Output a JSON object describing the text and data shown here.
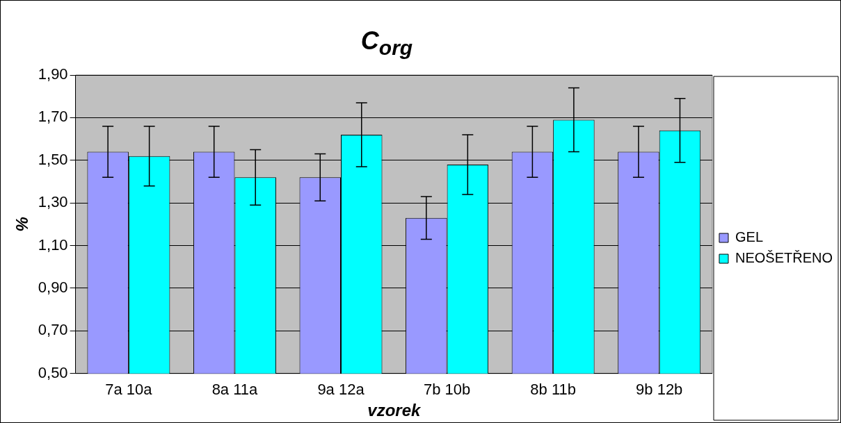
{
  "chart_data": {
    "type": "bar",
    "title": "C$_{org}$",
    "xlabel": "vzorek",
    "ylabel": "%",
    "categories": [
      "7a 10a",
      "8a 11a",
      "9a 12a",
      "7b 10b",
      "8b 11b",
      "9b 12b"
    ],
    "series": [
      {
        "name": "GEL",
        "color": "#9999ff",
        "values": [
          1.54,
          1.54,
          1.42,
          1.23,
          1.54,
          1.54
        ],
        "errors": [
          0.12,
          0.12,
          0.11,
          0.1,
          0.12,
          0.12
        ]
      },
      {
        "name": "NEOŠETŘENO",
        "color": "#00ffff",
        "values": [
          1.52,
          1.42,
          1.62,
          1.48,
          1.69,
          1.64
        ],
        "errors": [
          0.14,
          0.13,
          0.15,
          0.14,
          0.15,
          0.15
        ]
      }
    ],
    "ylim": [
      0.5,
      1.9
    ],
    "yticks": [
      {
        "value": 0.5,
        "label": "0,50"
      },
      {
        "value": 0.7,
        "label": "0,70"
      },
      {
        "value": 0.9,
        "label": "0,90"
      },
      {
        "value": 1.1,
        "label": "1,10"
      },
      {
        "value": 1.3,
        "label": "1,30"
      },
      {
        "value": 1.5,
        "label": "1,50"
      },
      {
        "value": 1.7,
        "label": "1,70"
      },
      {
        "value": 1.9,
        "label": "1,90"
      }
    ],
    "grid": "y",
    "legend": "right"
  }
}
